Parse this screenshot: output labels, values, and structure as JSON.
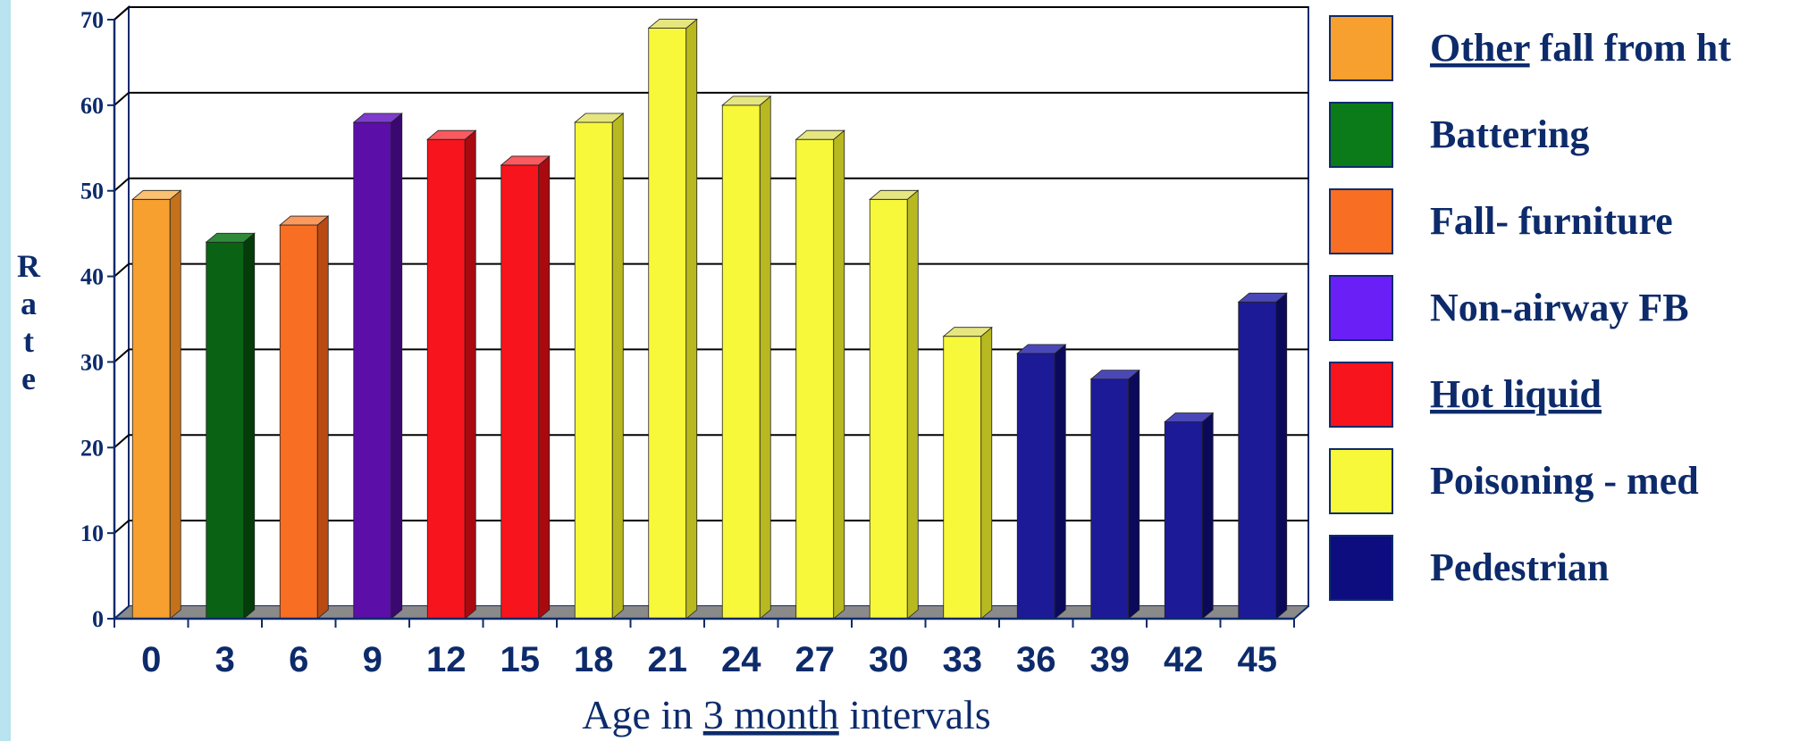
{
  "chart_data": {
    "type": "bar",
    "title": "",
    "ylabel": "Rate",
    "xlabel": {
      "prefix": "Age in ",
      "underlined": "3 month",
      "suffix": " intervals"
    },
    "ylim": [
      0,
      70
    ],
    "yticks": [
      0,
      10,
      20,
      30,
      40,
      50,
      60,
      70
    ],
    "grid": true,
    "legend_position": "right",
    "categories": [
      "0",
      "3",
      "6",
      "9",
      "12",
      "15",
      "18",
      "21",
      "24",
      "27",
      "30",
      "33",
      "36",
      "39",
      "42",
      "45"
    ],
    "values": [
      49,
      44,
      46,
      58,
      56,
      53,
      58,
      69,
      60,
      56,
      49,
      33,
      31,
      28,
      23,
      37
    ],
    "bar_series": [
      "Other fall from ht",
      "Battering",
      "Fall- furniture",
      "Non-airway FB",
      "Hot liquid",
      "Hot liquid",
      "Poisoning - med",
      "Poisoning - med",
      "Poisoning - med",
      "Poisoning - med",
      "Poisoning - med",
      "Poisoning - med",
      "Pedestrian",
      "Pedestrian",
      "Pedestrian",
      "Pedestrian"
    ],
    "legend": [
      {
        "name": "Other fall from ht",
        "underlined": "Other",
        "rest": " fall from ht",
        "color": "#f7a030"
      },
      {
        "name": "Battering",
        "underlined": "",
        "rest": "Battering",
        "color": "#0b7a18"
      },
      {
        "name": "Fall- furniture",
        "underlined": "",
        "rest": "Fall- furniture",
        "color": "#f86e22"
      },
      {
        "name": "Non-airway FB",
        "underlined": "",
        "rest": "Non-airway FB",
        "color": "#6a1ff6"
      },
      {
        "name": "Hot liquid",
        "underlined": "Hot liquid",
        "rest": "",
        "color": "#f8141c"
      },
      {
        "name": "Poisoning - med",
        "underlined": "",
        "rest": "Poisoning - med",
        "color": "#f8f83a"
      },
      {
        "name": "Pedestrian",
        "underlined": "",
        "rest": "Pedestrian",
        "color": "#0d0d80"
      }
    ],
    "bar_colors": {
      "Other fall from ht": {
        "front": "#f7a030",
        "side": "#c4711a",
        "top": "#fbc070"
      },
      "Battering": {
        "front": "#0a6314",
        "side": "#043d0a",
        "top": "#2f8a3a"
      },
      "Fall- furniture": {
        "front": "#f86e22",
        "side": "#b84a12",
        "top": "#fa9a5e"
      },
      "Non-airway FB": {
        "front": "#5b0ea8",
        "side": "#3a0870",
        "top": "#7f3ccc"
      },
      "Hot liquid": {
        "front": "#f8141c",
        "side": "#a80a10",
        "top": "#fa5a60"
      },
      "Poisoning - med": {
        "front": "#f8f83a",
        "side": "#b8b820",
        "top": "#e6e680"
      },
      "Pedestrian": {
        "front": "#1c1a96",
        "side": "#0b0a5a",
        "top": "#4a48b8"
      }
    }
  }
}
